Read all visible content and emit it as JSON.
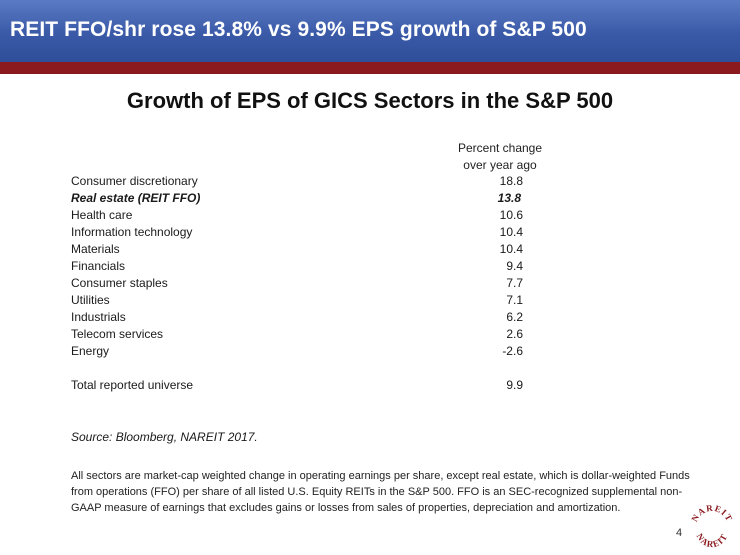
{
  "header": {
    "title": "REIT FFO/shr rose 13.8% vs 9.9% EPS growth of S&P 500"
  },
  "slide": {
    "title": "Growth of EPS of GICS Sectors in the S&P 500"
  },
  "table": {
    "column_header_line1": "Percent change",
    "column_header_line2": "over year ago",
    "rows": [
      {
        "name": "Consumer discretionary",
        "value": "18.8"
      },
      {
        "name": "Real estate (REIT FFO)",
        "value": "13.8",
        "highlight": true
      },
      {
        "name": "Health care",
        "value": "10.6"
      },
      {
        "name": "Information technology",
        "value": "10.4"
      },
      {
        "name": "Materials",
        "value": "10.4"
      },
      {
        "name": "Financials",
        "value": "9.4"
      },
      {
        "name": "Consumer staples",
        "value": "7.7"
      },
      {
        "name": "Utilities",
        "value": "7.1"
      },
      {
        "name": "Industrials",
        "value": "6.2"
      },
      {
        "name": "Telecom services",
        "value": "2.6"
      },
      {
        "name": "Energy",
        "value": "-2.6"
      }
    ],
    "total": {
      "name": "Total reported universe",
      "value": "9.9"
    }
  },
  "source": "Source: Bloomberg, NAREIT 2017.",
  "footnote": "All sectors are market-cap weighted change in operating earnings per share, except real estate, which is dollar-weighted Funds from operations (FFO) per share of all listed U.S. Equity REITs in the S&P 500. FFO is an SEC-recognized supplemental non-GAAP measure of earnings that excludes gains or losses from sales of properties, depreciation and amortization.",
  "page_number": "4",
  "logo": {
    "text_top": "NAREIT",
    "text_bottom": "NAREIT",
    "color": "#8b1a1f"
  },
  "colors": {
    "header_blue": "#3a5aa8",
    "accent_red": "#8b1a1f"
  }
}
